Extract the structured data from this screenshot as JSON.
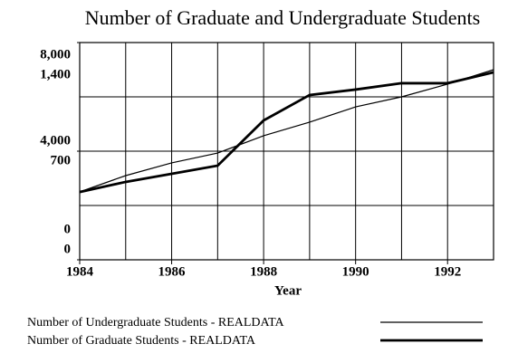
{
  "chart_data": {
    "type": "line",
    "title": "Number of Graduate and Undergraduate Students",
    "xlabel": "Year",
    "x": [
      1984,
      1985,
      1986,
      1987,
      1988,
      1989,
      1990,
      1991,
      1992,
      1993
    ],
    "xlim": [
      1984,
      1993
    ],
    "xticks": [
      1984,
      1986,
      1988,
      1990,
      1992
    ],
    "ylim": [
      0,
      8000
    ],
    "yticks": [
      {
        "value": 0,
        "label": "0"
      },
      {
        "value": 4000,
        "label": "4,000"
      },
      {
        "value": 8000,
        "label": "8,000"
      }
    ],
    "ygrid": [
      2000,
      6000
    ],
    "y2lim": [
      0,
      1400
    ],
    "y2ticks": [
      {
        "value": 0,
        "label": "0"
      },
      {
        "value": 700,
        "label": "700"
      },
      {
        "value": 1400,
        "label": "1,400"
      }
    ],
    "grid": true,
    "series": [
      {
        "name": "Number of Undergraduate Students - REALDATA",
        "color": "#000000",
        "width": 1.2,
        "values": [
          2500,
          3100,
          3570,
          3930,
          4570,
          5070,
          5630,
          6000,
          6470,
          7000
        ]
      },
      {
        "name": "Number of Graduate Students - REALDATA",
        "color": "#000000",
        "width": 2.8,
        "axis": "y2",
        "values": [
          437,
          502,
          554,
          607,
          898,
          1062,
          1097,
          1138,
          1138,
          1208
        ]
      }
    ]
  }
}
